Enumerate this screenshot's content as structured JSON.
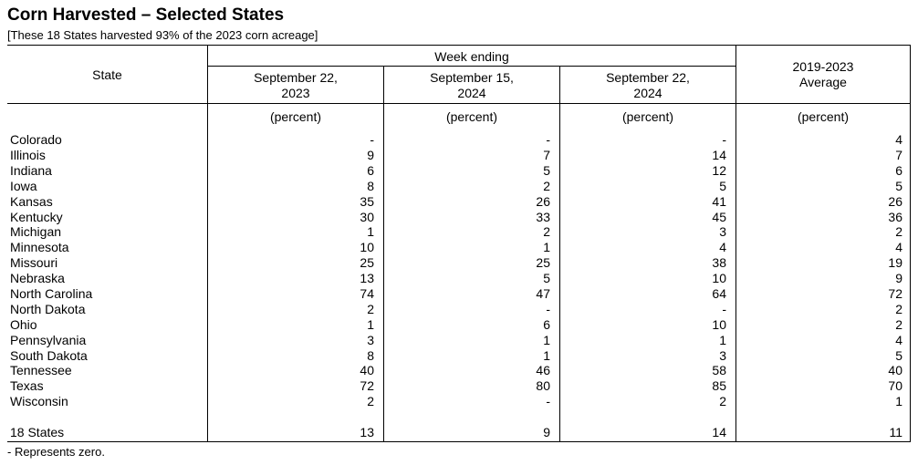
{
  "title": "Corn Harvested – Selected States",
  "subtitle": "[These 18 States harvested 93% of the 2023 corn acreage]",
  "headers": {
    "state": "State",
    "week_ending": "Week ending",
    "col1_line1": "September 22,",
    "col1_line2": "2023",
    "col2_line1": "September 15,",
    "col2_line2": "2024",
    "col3_line1": "September 22,",
    "col3_line2": "2024",
    "col4_line1": "2019-2023",
    "col4_line2": "Average",
    "unit": "(percent)"
  },
  "rows": [
    {
      "state": "Colorado",
      "v": [
        "-",
        "-",
        "-",
        "4"
      ]
    },
    {
      "state": "Illinois",
      "v": [
        "9",
        "7",
        "14",
        "7"
      ]
    },
    {
      "state": "Indiana",
      "v": [
        "6",
        "5",
        "12",
        "6"
      ]
    },
    {
      "state": "Iowa",
      "v": [
        "8",
        "2",
        "5",
        "5"
      ]
    },
    {
      "state": "Kansas",
      "v": [
        "35",
        "26",
        "41",
        "26"
      ]
    },
    {
      "state": "Kentucky",
      "v": [
        "30",
        "33",
        "45",
        "36"
      ]
    },
    {
      "state": "Michigan",
      "v": [
        "1",
        "2",
        "3",
        "2"
      ]
    },
    {
      "state": "Minnesota",
      "v": [
        "10",
        "1",
        "4",
        "4"
      ]
    },
    {
      "state": "Missouri",
      "v": [
        "25",
        "25",
        "38",
        "19"
      ]
    },
    {
      "state": "Nebraska",
      "v": [
        "13",
        "5",
        "10",
        "9"
      ]
    },
    {
      "state": "North Carolina",
      "v": [
        "74",
        "47",
        "64",
        "72"
      ]
    },
    {
      "state": "North Dakota",
      "v": [
        "2",
        "-",
        "-",
        "2"
      ]
    },
    {
      "state": "Ohio",
      "v": [
        "1",
        "6",
        "10",
        "2"
      ]
    },
    {
      "state": "Pennsylvania",
      "v": [
        "3",
        "1",
        "1",
        "4"
      ]
    },
    {
      "state": "South Dakota",
      "v": [
        "8",
        "1",
        "3",
        "5"
      ]
    },
    {
      "state": "Tennessee",
      "v": [
        "40",
        "46",
        "58",
        "40"
      ]
    },
    {
      "state": "Texas",
      "v": [
        "72",
        "80",
        "85",
        "70"
      ]
    },
    {
      "state": "Wisconsin",
      "v": [
        "2",
        "-",
        "2",
        "1"
      ]
    }
  ],
  "total": {
    "state": "18 States",
    "v": [
      "13",
      "9",
      "14",
      "11"
    ]
  },
  "footnote": "- Represents zero."
}
